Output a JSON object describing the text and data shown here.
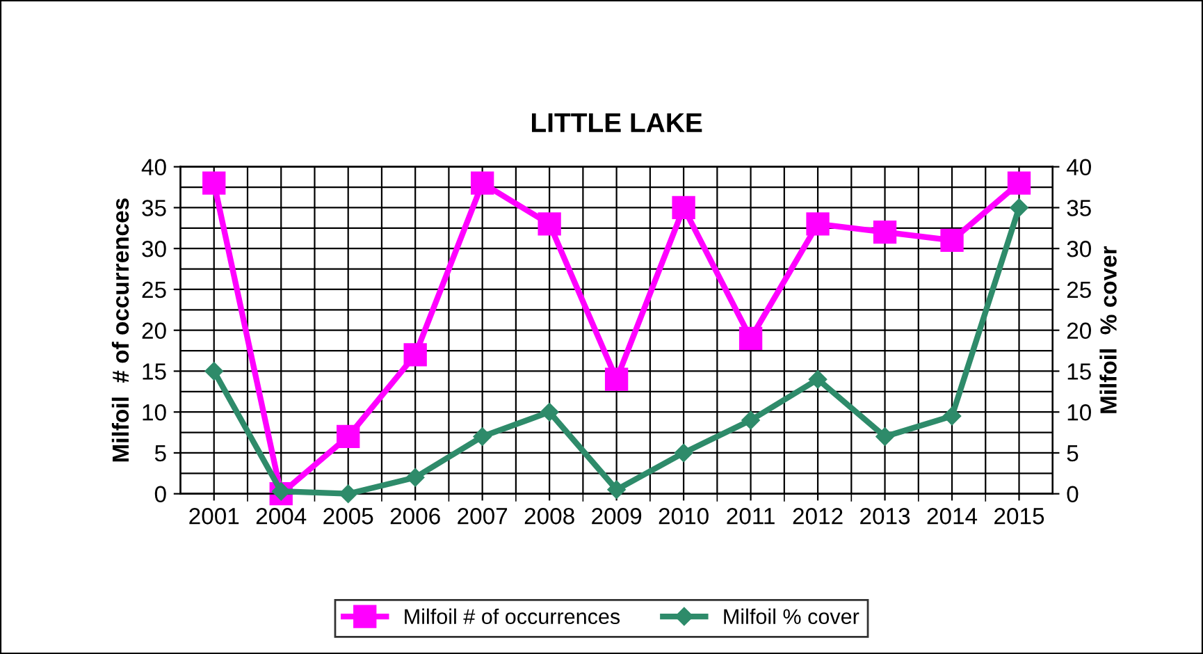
{
  "chart_data": {
    "type": "line",
    "title": "LITTLE LAKE",
    "ylabel": "Milfoil  # of occurrences",
    "y2label": "Milfoil  % cover",
    "categories": [
      "2001",
      "2004",
      "2005",
      "2006",
      "2007",
      "2008",
      "2009",
      "2010",
      "2011",
      "2012",
      "2013",
      "2014",
      "2015"
    ],
    "series": [
      {
        "name": "Milfoil # of occurrences",
        "color": "#ff00ff",
        "marker": "square",
        "values": [
          38,
          0,
          7,
          17,
          38,
          33,
          14,
          35,
          19,
          33,
          32,
          31,
          38
        ]
      },
      {
        "name": "Milfoil % cover",
        "color": "#2e8b6a",
        "marker": "diamond",
        "axis": "y2",
        "values": [
          15,
          0.3,
          0,
          2,
          7,
          10,
          0.5,
          5,
          9,
          14,
          7,
          9.5,
          35
        ]
      }
    ],
    "ylim": [
      0,
      40
    ],
    "yticks": [
      0,
      5,
      10,
      15,
      20,
      25,
      30,
      35,
      40
    ],
    "y2lim": [
      0,
      40
    ],
    "y2ticks": [
      0,
      5,
      10,
      15,
      20,
      25,
      30,
      35,
      40
    ],
    "grid": true,
    "legend": "bottom",
    "line_style": "solid"
  }
}
